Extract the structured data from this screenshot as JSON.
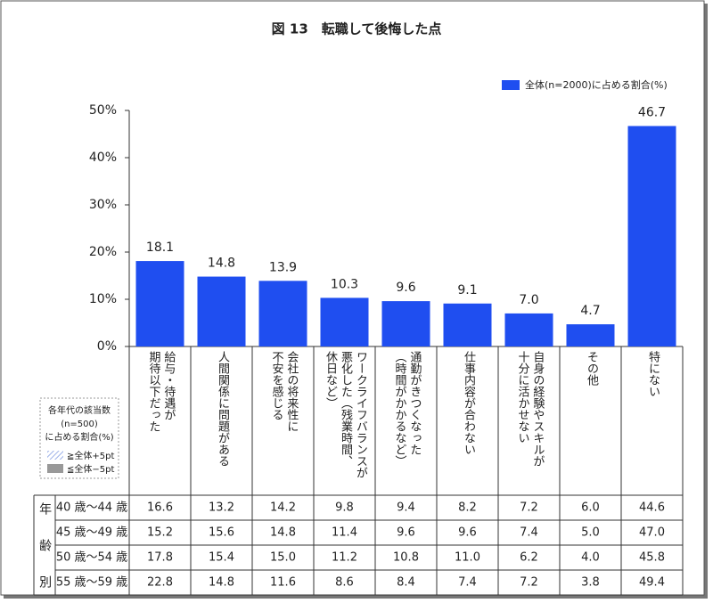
{
  "chart_data": {
    "type": "bar",
    "title": "図 13　転職して後悔した点",
    "categories": [
      "給与・待遇が\n期待以下だった",
      "人間関係に問題がある",
      "会社の将来性に\n不安を感じる",
      "ワークライフバランスが\n悪化した（残業時間、\n休日など）",
      "通勤がきつくなった\n（時間がかかるなど）",
      "仕事内容が合わない",
      "自身の経験やスキルが\n十分に活かせない",
      "その他",
      "特にない"
    ],
    "series": [
      {
        "name": "全体(n=2000)に占める割合(%)",
        "color": "#1f4ef0",
        "values": [
          18.1,
          14.8,
          13.9,
          10.3,
          9.6,
          9.1,
          7.0,
          4.7,
          46.7
        ],
        "value_labels": [
          "18.1",
          "14.8",
          "13.9",
          "10.3",
          "9.6",
          "9.1",
          "7.0",
          "4.7",
          "46.7"
        ]
      }
    ],
    "ylim": [
      0,
      50
    ],
    "yticks": [
      {
        "value": 0,
        "label": "0%"
      },
      {
        "value": 10,
        "label": "10%"
      },
      {
        "value": 20,
        "label": "20%"
      },
      {
        "value": 30,
        "label": "30%"
      },
      {
        "value": 40,
        "label": "40%"
      },
      {
        "value": 50,
        "label": "50%"
      }
    ],
    "legend": "top-right"
  },
  "note": {
    "lines": [
      "各年代の該当数",
      "(n=500)",
      "に占める割合(%)"
    ],
    "above": "≧全体+5pt",
    "below": "≦全体−5pt"
  },
  "table": {
    "group_label": "年齢別",
    "rows": [
      {
        "label": "40 歳～44 歳",
        "cells": [
          "16.6",
          "13.2",
          "14.2",
          "9.8",
          "9.4",
          "8.2",
          "7.2",
          "6.0",
          "44.6"
        ]
      },
      {
        "label": "45 歳～49 歳",
        "cells": [
          "15.2",
          "15.6",
          "14.8",
          "11.4",
          "9.6",
          "9.6",
          "7.4",
          "5.0",
          "47.0"
        ]
      },
      {
        "label": "50 歳～54 歳",
        "cells": [
          "17.8",
          "15.4",
          "15.0",
          "11.2",
          "10.8",
          "11.0",
          "6.2",
          "4.0",
          "45.8"
        ]
      },
      {
        "label": "55 歳～59 歳",
        "cells": [
          "22.8",
          "14.8",
          "11.6",
          "8.6",
          "8.4",
          "7.4",
          "7.2",
          "3.8",
          "49.4"
        ]
      }
    ]
  }
}
